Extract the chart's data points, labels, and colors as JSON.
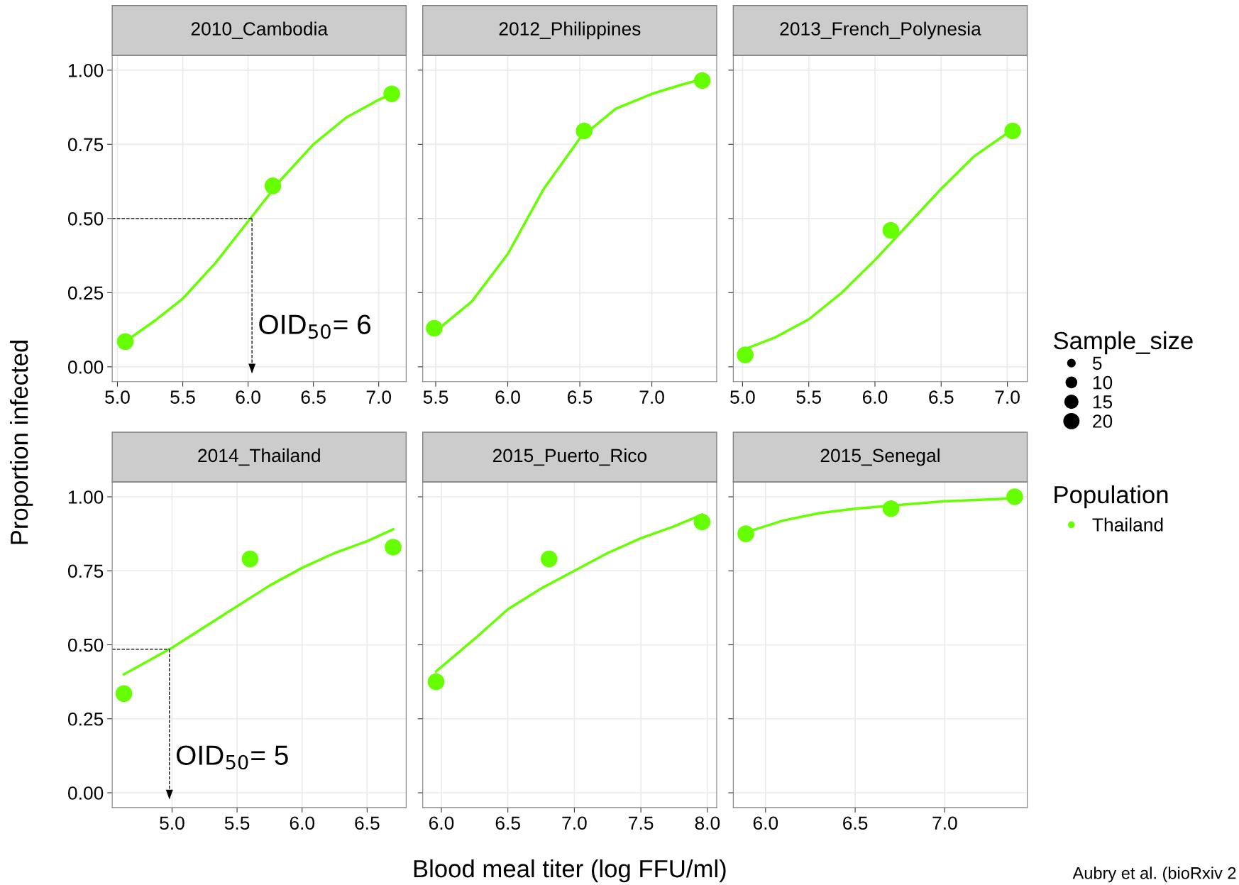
{
  "chart_data": [
    {
      "type": "bubble",
      "title": "2010_Cambodia",
      "ylabel": "Proportion infected",
      "legend": "right",
      "legend_title": "Population",
      "size_legend": [
        5,
        10,
        15,
        20
      ],
      "grid": true,
      "xlim": [
        4.96,
        7.21
      ],
      "xticks": [
        {
          "value": 5.0,
          "label": "5.0"
        },
        5.5,
        {
          "value": 6.0,
          "label": "6.0"
        },
        6.5,
        {
          "value": 7.0,
          "label": "7.0"
        }
      ],
      "ylim": [
        -0.05,
        1.05
      ],
      "yticks": [
        {
          "value": 0,
          "label": "0.00"
        },
        {
          "value": 0.25,
          "label": "0.25"
        },
        {
          "value": 0.5,
          "label": "0.50"
        },
        {
          "value": 0.75,
          "label": "0.75"
        },
        {
          "value": 1,
          "label": "1.00"
        }
      ],
      "series": [
        {
          "name": "Thailand",
          "marker": "circle",
          "color": "#66ff00",
          "x": [
            5.06,
            6.19,
            7.1
          ],
          "values": [
            0.085,
            0.61,
            0.92
          ],
          "sizes": [
            24,
            24,
            24
          ]
        },
        {
          "type": "line",
          "color": "#66ff00",
          "line_style": "solid",
          "x": [
            5.06,
            5.3,
            5.5,
            5.75,
            6.0,
            6.25,
            6.5,
            6.75,
            7.0,
            7.1
          ],
          "values": [
            0.085,
            0.16,
            0.23,
            0.35,
            0.49,
            0.63,
            0.75,
            0.84,
            0.9,
            0.92
          ]
        }
      ],
      "ref_lines": [
        {
          "axis": "y",
          "value": 0.5,
          "color": "#000000",
          "line_style": "dashed"
        },
        {
          "axis": "x",
          "value": 6.03,
          "color": "#000000",
          "line_style": "dashed"
        }
      ],
      "annotations": [
        "OID$_{50}$= 6",
        "Sample_size"
      ]
    },
    {
      "type": "scatter",
      "title": "2012_Philippines",
      "tick_labels": "x",
      "grid": true,
      "xlim": [
        5.41,
        7.45
      ],
      "xticks": [
        5.5,
        {
          "value": 6.0,
          "label": "6.0"
        },
        6.5,
        {
          "value": 7.0,
          "label": "7.0"
        }
      ],
      "ylim": [
        -0.05,
        1.05
      ],
      "yticks": [
        {
          "value": 0,
          "label": null
        },
        {
          "value": 0.25,
          "label": null
        },
        {
          "value": 0.5,
          "label": null
        },
        {
          "value": 0.75,
          "label": null
        },
        {
          "value": 1,
          "label": null
        }
      ],
      "series": [
        {
          "marker": "circle",
          "color": "#66ff00",
          "x": [
            5.49,
            6.53,
            7.35
          ],
          "values": [
            0.13,
            0.795,
            0.965
          ]
        },
        {
          "type": "line",
          "color": "#66ff00",
          "line_style": "solid",
          "x": [
            5.5,
            5.75,
            6.0,
            6.25,
            6.5,
            6.75,
            7.0,
            7.2,
            7.35
          ],
          "values": [
            0.12,
            0.22,
            0.38,
            0.6,
            0.77,
            0.87,
            0.92,
            0.95,
            0.97
          ]
        }
      ]
    },
    {
      "type": "scatter",
      "title": "2013_French_Polynesia",
      "tick_labels": "x",
      "grid": true,
      "xlim": [
        4.93,
        7.15
      ],
      "xticks": [
        {
          "value": 5.0,
          "label": "5.0"
        },
        5.5,
        {
          "value": 6.0,
          "label": "6.0"
        },
        6.5,
        {
          "value": 7.0,
          "label": "7.0"
        }
      ],
      "ylim": [
        -0.05,
        1.05
      ],
      "yticks": [
        {
          "value": 0,
          "label": null
        },
        {
          "value": 0.25,
          "label": null
        },
        {
          "value": 0.5,
          "label": null
        },
        {
          "value": 0.75,
          "label": null
        },
        {
          "value": 1,
          "label": null
        }
      ],
      "series": [
        {
          "marker": "circle",
          "color": "#66ff00",
          "x": [
            5.02,
            6.12,
            7.04
          ],
          "values": [
            0.04,
            0.46,
            0.795
          ]
        },
        {
          "type": "line",
          "color": "#66ff00",
          "line_style": "solid",
          "x": [
            5.02,
            5.25,
            5.5,
            5.75,
            6.0,
            6.25,
            6.5,
            6.75,
            7.04
          ],
          "values": [
            0.06,
            0.1,
            0.16,
            0.25,
            0.36,
            0.48,
            0.6,
            0.71,
            0.8
          ]
        }
      ]
    },
    {
      "type": "scatter",
      "title": "2014_Thailand",
      "grid": true,
      "xlim": [
        4.54,
        6.8
      ],
      "xticks": [
        {
          "value": 5.0,
          "label": "5.0"
        },
        5.5,
        {
          "value": 6.0,
          "label": "6.0"
        },
        6.5
      ],
      "ylim": [
        -0.05,
        1.05
      ],
      "yticks": [
        {
          "value": 0,
          "label": "0.00"
        },
        {
          "value": 0.25,
          "label": "0.25"
        },
        {
          "value": 0.5,
          "label": "0.50"
        },
        {
          "value": 0.75,
          "label": "0.75"
        },
        {
          "value": 1,
          "label": "1.00"
        }
      ],
      "series": [
        {
          "marker": "circle",
          "color": "#66ff00",
          "x": [
            4.63,
            5.6,
            6.7
          ],
          "values": [
            0.335,
            0.79,
            0.83
          ]
        },
        {
          "type": "line",
          "color": "#66ff00",
          "line_style": "solid",
          "x": [
            4.63,
            5.0,
            5.25,
            5.5,
            5.75,
            6.0,
            6.25,
            6.5,
            6.7
          ],
          "values": [
            0.4,
            0.49,
            0.56,
            0.63,
            0.7,
            0.76,
            0.81,
            0.85,
            0.89
          ]
        }
      ],
      "ref_lines": [
        {
          "axis": "y",
          "value": 0.485,
          "color": "#000000",
          "line_style": "dashed"
        },
        {
          "axis": "x",
          "value": 4.98,
          "color": "#000000",
          "line_style": "dashed"
        }
      ],
      "annotations": [
        "OID$_{50}$= 5"
      ]
    },
    {
      "type": "scatter",
      "title": "2015_Puerto_Rico",
      "xlabel": "Blood meal titer (log FFU/ml)",
      "tick_labels": "x",
      "grid": true,
      "xlim": [
        5.86,
        8.07
      ],
      "xticks": [
        {
          "value": 6.0,
          "label": "6.0"
        },
        6.5,
        {
          "value": 7.0,
          "label": "7.0"
        },
        7.5,
        {
          "value": 8.0,
          "label": "8.0"
        }
      ],
      "ylim": [
        -0.05,
        1.05
      ],
      "yticks": [
        {
          "value": 0,
          "label": null
        },
        {
          "value": 0.25,
          "label": null
        },
        {
          "value": 0.5,
          "label": null
        },
        {
          "value": 0.75,
          "label": null
        },
        {
          "value": 1,
          "label": null
        }
      ],
      "series": [
        {
          "marker": "circle",
          "color": "#66ff00",
          "x": [
            5.96,
            6.81,
            7.96
          ],
          "values": [
            0.375,
            0.79,
            0.915
          ]
        },
        {
          "type": "line",
          "color": "#66ff00",
          "line_style": "solid",
          "x": [
            5.96,
            6.25,
            6.5,
            6.75,
            7.0,
            7.25,
            7.5,
            7.75,
            7.96
          ],
          "values": [
            0.41,
            0.52,
            0.62,
            0.69,
            0.75,
            0.81,
            0.86,
            0.9,
            0.94
          ]
        }
      ]
    },
    {
      "type": "scatter",
      "title": "2015_Senegal",
      "tick_labels": "x",
      "grid": true,
      "xlim": [
        5.82,
        7.46
      ],
      "xticks": [
        {
          "value": 6.0,
          "label": "6.0"
        },
        6.5,
        {
          "value": 7.0,
          "label": "7.0"
        }
      ],
      "ylim": [
        -0.05,
        1.05
      ],
      "yticks": [
        {
          "value": 0,
          "label": null
        },
        {
          "value": 0.25,
          "label": null
        },
        {
          "value": 0.5,
          "label": null
        },
        {
          "value": 0.75,
          "label": null
        },
        {
          "value": 1,
          "label": null
        }
      ],
      "series": [
        {
          "marker": "circle",
          "color": "#66ff00",
          "x": [
            5.89,
            6.7,
            7.39
          ],
          "values": [
            0.875,
            0.96,
            1.0
          ]
        },
        {
          "type": "line",
          "color": "#66ff00",
          "line_style": "solid",
          "x": [
            5.89,
            6.1,
            6.3,
            6.5,
            6.7,
            7.0,
            7.2,
            7.39
          ],
          "values": [
            0.88,
            0.92,
            0.945,
            0.96,
            0.97,
            0.985,
            0.99,
            0.995
          ]
        }
      ],
      "annotations": [
        "Aubry et al. (bioRxiv 2"
      ]
    }
  ]
}
